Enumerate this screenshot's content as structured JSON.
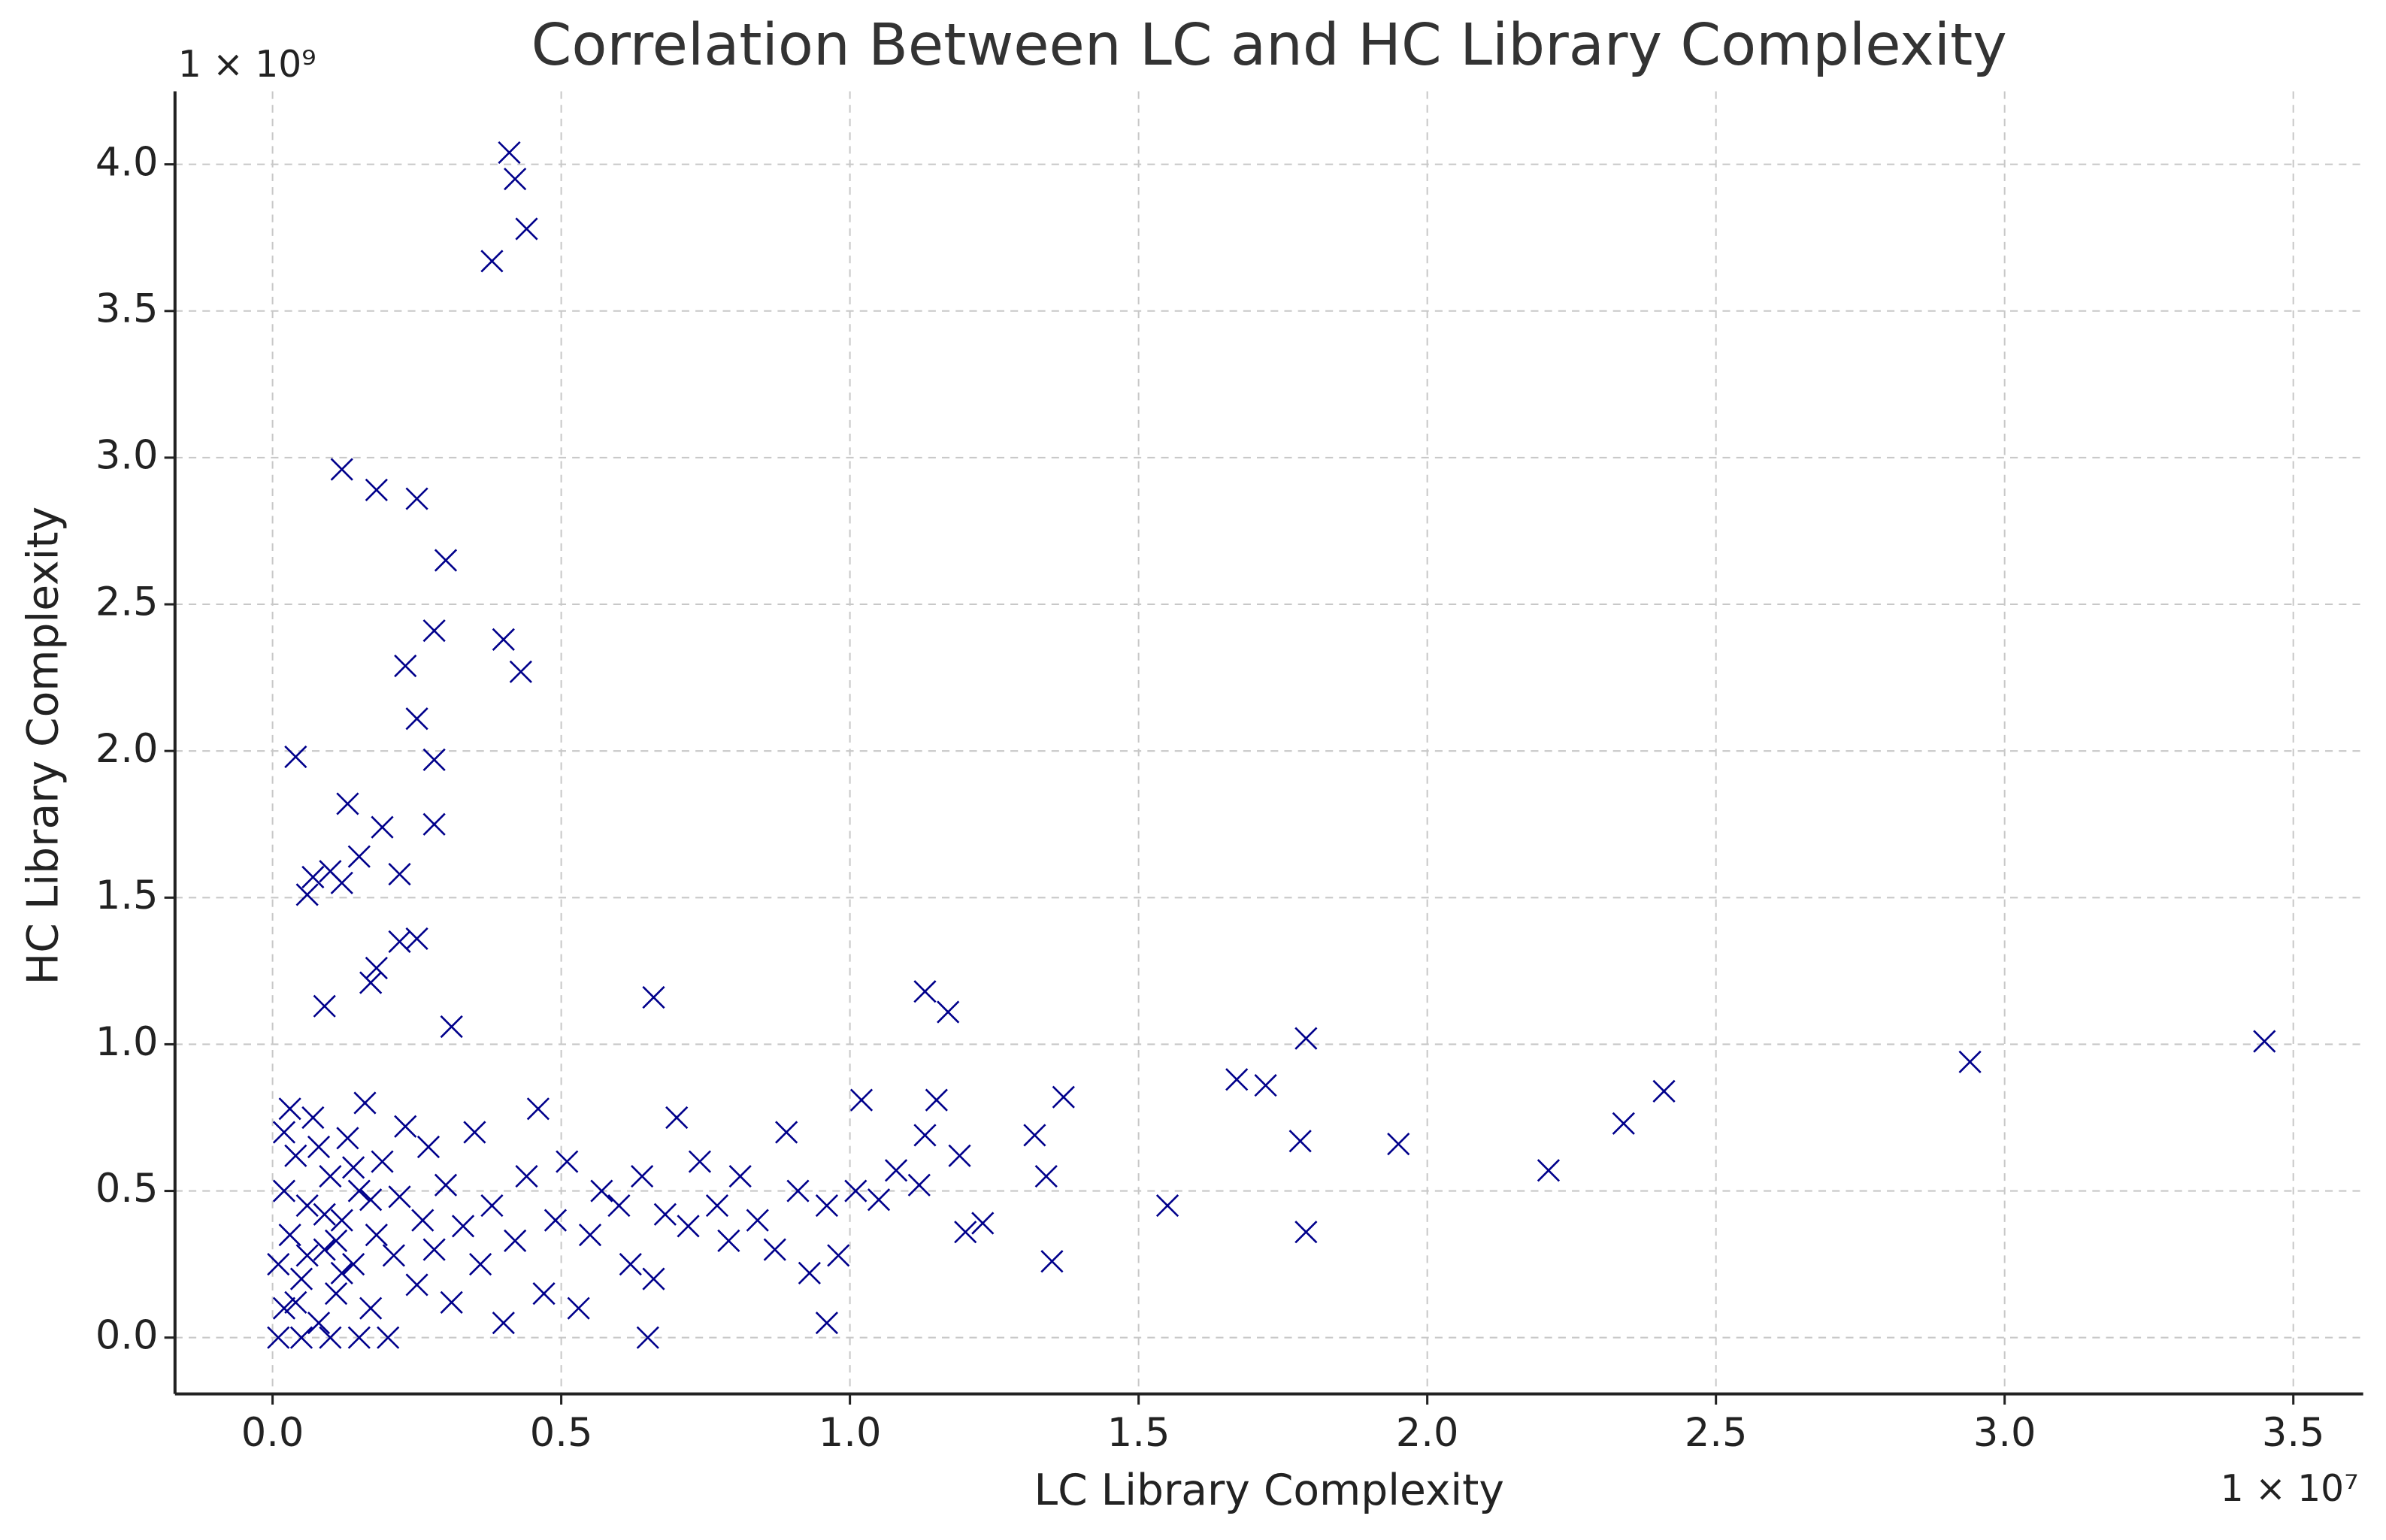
{
  "chart_data": {
    "type": "scatter",
    "title": "Correlation Between LC and HC Library Complexity",
    "x_label": "LC Library Complexity",
    "y_label": "HC Library Complexity",
    "x_offset_label": "1 × 10⁷",
    "y_offset_label": "1 × 10⁹",
    "marker": "x",
    "color": "#00008b",
    "grid": true,
    "xlim": [
      -0.169,
      3.621
    ],
    "ylim": [
      -0.192,
      4.249
    ],
    "xticks": [
      {
        "value": 0,
        "label": "0.0"
      },
      0.5,
      {
        "value": 1,
        "label": "1.0"
      },
      1.5,
      {
        "value": 2,
        "label": "2.0"
      },
      2.5,
      {
        "value": 3,
        "label": "3.0"
      },
      3.5
    ],
    "yticks": [
      {
        "value": 0,
        "label": "0.0"
      },
      0.5,
      {
        "value": 1,
        "label": "1.0"
      },
      1.5,
      {
        "value": 2,
        "label": "2.0"
      },
      2.5,
      {
        "value": 3,
        "label": "3.0"
      },
      3.5,
      {
        "value": 4,
        "label": "4.0"
      }
    ],
    "x": [
      0.41,
      0.42,
      0.44,
      0.38,
      0.12,
      0.18,
      0.25,
      0.3,
      0.28,
      0.4,
      0.43,
      0.23,
      0.25,
      0.04,
      0.28,
      0.13,
      0.19,
      0.28,
      0.15,
      0.1,
      0.07,
      0.12,
      0.06,
      0.22,
      0.22,
      0.25,
      0.18,
      0.17,
      0.09,
      0.31,
      0.66,
      1.13,
      1.17,
      1.79,
      3.45,
      2.94,
      1.67,
      1.72,
      2.41,
      1.37,
      1.02,
      1.15,
      2.34,
      1.32,
      1.13,
      1.78,
      1.95,
      1.19,
      2.21,
      1.34,
      1.55,
      1.23,
      1.2,
      1.79,
      1.35,
      0.96,
      0.65,
      0.02,
      0.03,
      0.04,
      0.05,
      0.06,
      0.07,
      0.08,
      0.09,
      0.1,
      0.11,
      0.12,
      0.13,
      0.14,
      0.15,
      0.16,
      0.17,
      0.18,
      0.19,
      0.2,
      0.21,
      0.22,
      0.23,
      0.25,
      0.26,
      0.27,
      0.28,
      0.3,
      0.31,
      0.33,
      0.35,
      0.36,
      0.38,
      0.4,
      0.42,
      0.44,
      0.46,
      0.47,
      0.49,
      0.51,
      0.53,
      0.55,
      0.57,
      0.6,
      0.62,
      0.64,
      0.66,
      0.68,
      0.7,
      0.72,
      0.74,
      0.77,
      0.79,
      0.81,
      0.84,
      0.87,
      0.89,
      0.91,
      0.93,
      0.96,
      0.98,
      1.01,
      1.05,
      1.08,
      1.12,
      0.01,
      0.02,
      0.03,
      0.05,
      0.08,
      0.1,
      0.12,
      0.15,
      0.06,
      0.09,
      0.04,
      0.11,
      0.14,
      0.17,
      0.01,
      0.02
    ],
    "values": [
      4.04,
      3.95,
      3.78,
      3.67,
      2.96,
      2.89,
      2.86,
      2.65,
      2.41,
      2.38,
      2.27,
      2.29,
      2.11,
      1.98,
      1.97,
      1.82,
      1.74,
      1.75,
      1.64,
      1.59,
      1.57,
      1.55,
      1.51,
      1.58,
      1.35,
      1.36,
      1.26,
      1.21,
      1.13,
      1.06,
      1.16,
      1.18,
      1.11,
      1.02,
      1.01,
      0.94,
      0.88,
      0.86,
      0.84,
      0.82,
      0.81,
      0.81,
      0.73,
      0.69,
      0.69,
      0.67,
      0.66,
      0.62,
      0.57,
      0.55,
      0.45,
      0.39,
      0.36,
      0.36,
      0.26,
      0.05,
      0.0,
      0.1,
      0.35,
      0.62,
      0.2,
      0.45,
      0.75,
      0.05,
      0.3,
      0.55,
      0.15,
      0.4,
      0.68,
      0.25,
      0.5,
      0.8,
      0.1,
      0.35,
      0.6,
      0.0,
      0.28,
      0.48,
      0.72,
      0.18,
      0.4,
      0.65,
      0.3,
      0.52,
      0.12,
      0.38,
      0.7,
      0.25,
      0.45,
      0.05,
      0.33,
      0.55,
      0.78,
      0.15,
      0.4,
      0.6,
      0.1,
      0.35,
      0.5,
      0.45,
      0.25,
      0.55,
      0.2,
      0.42,
      0.75,
      0.38,
      0.6,
      0.45,
      0.33,
      0.55,
      0.4,
      0.3,
      0.7,
      0.5,
      0.22,
      0.45,
      0.28,
      0.5,
      0.47,
      0.57,
      0.52,
      0.0,
      0.5,
      0.78,
      0.0,
      0.65,
      0.0,
      0.22,
      0.0,
      0.28,
      0.42,
      0.12,
      0.33,
      0.58,
      0.47,
      0.25,
      0.7
    ]
  }
}
